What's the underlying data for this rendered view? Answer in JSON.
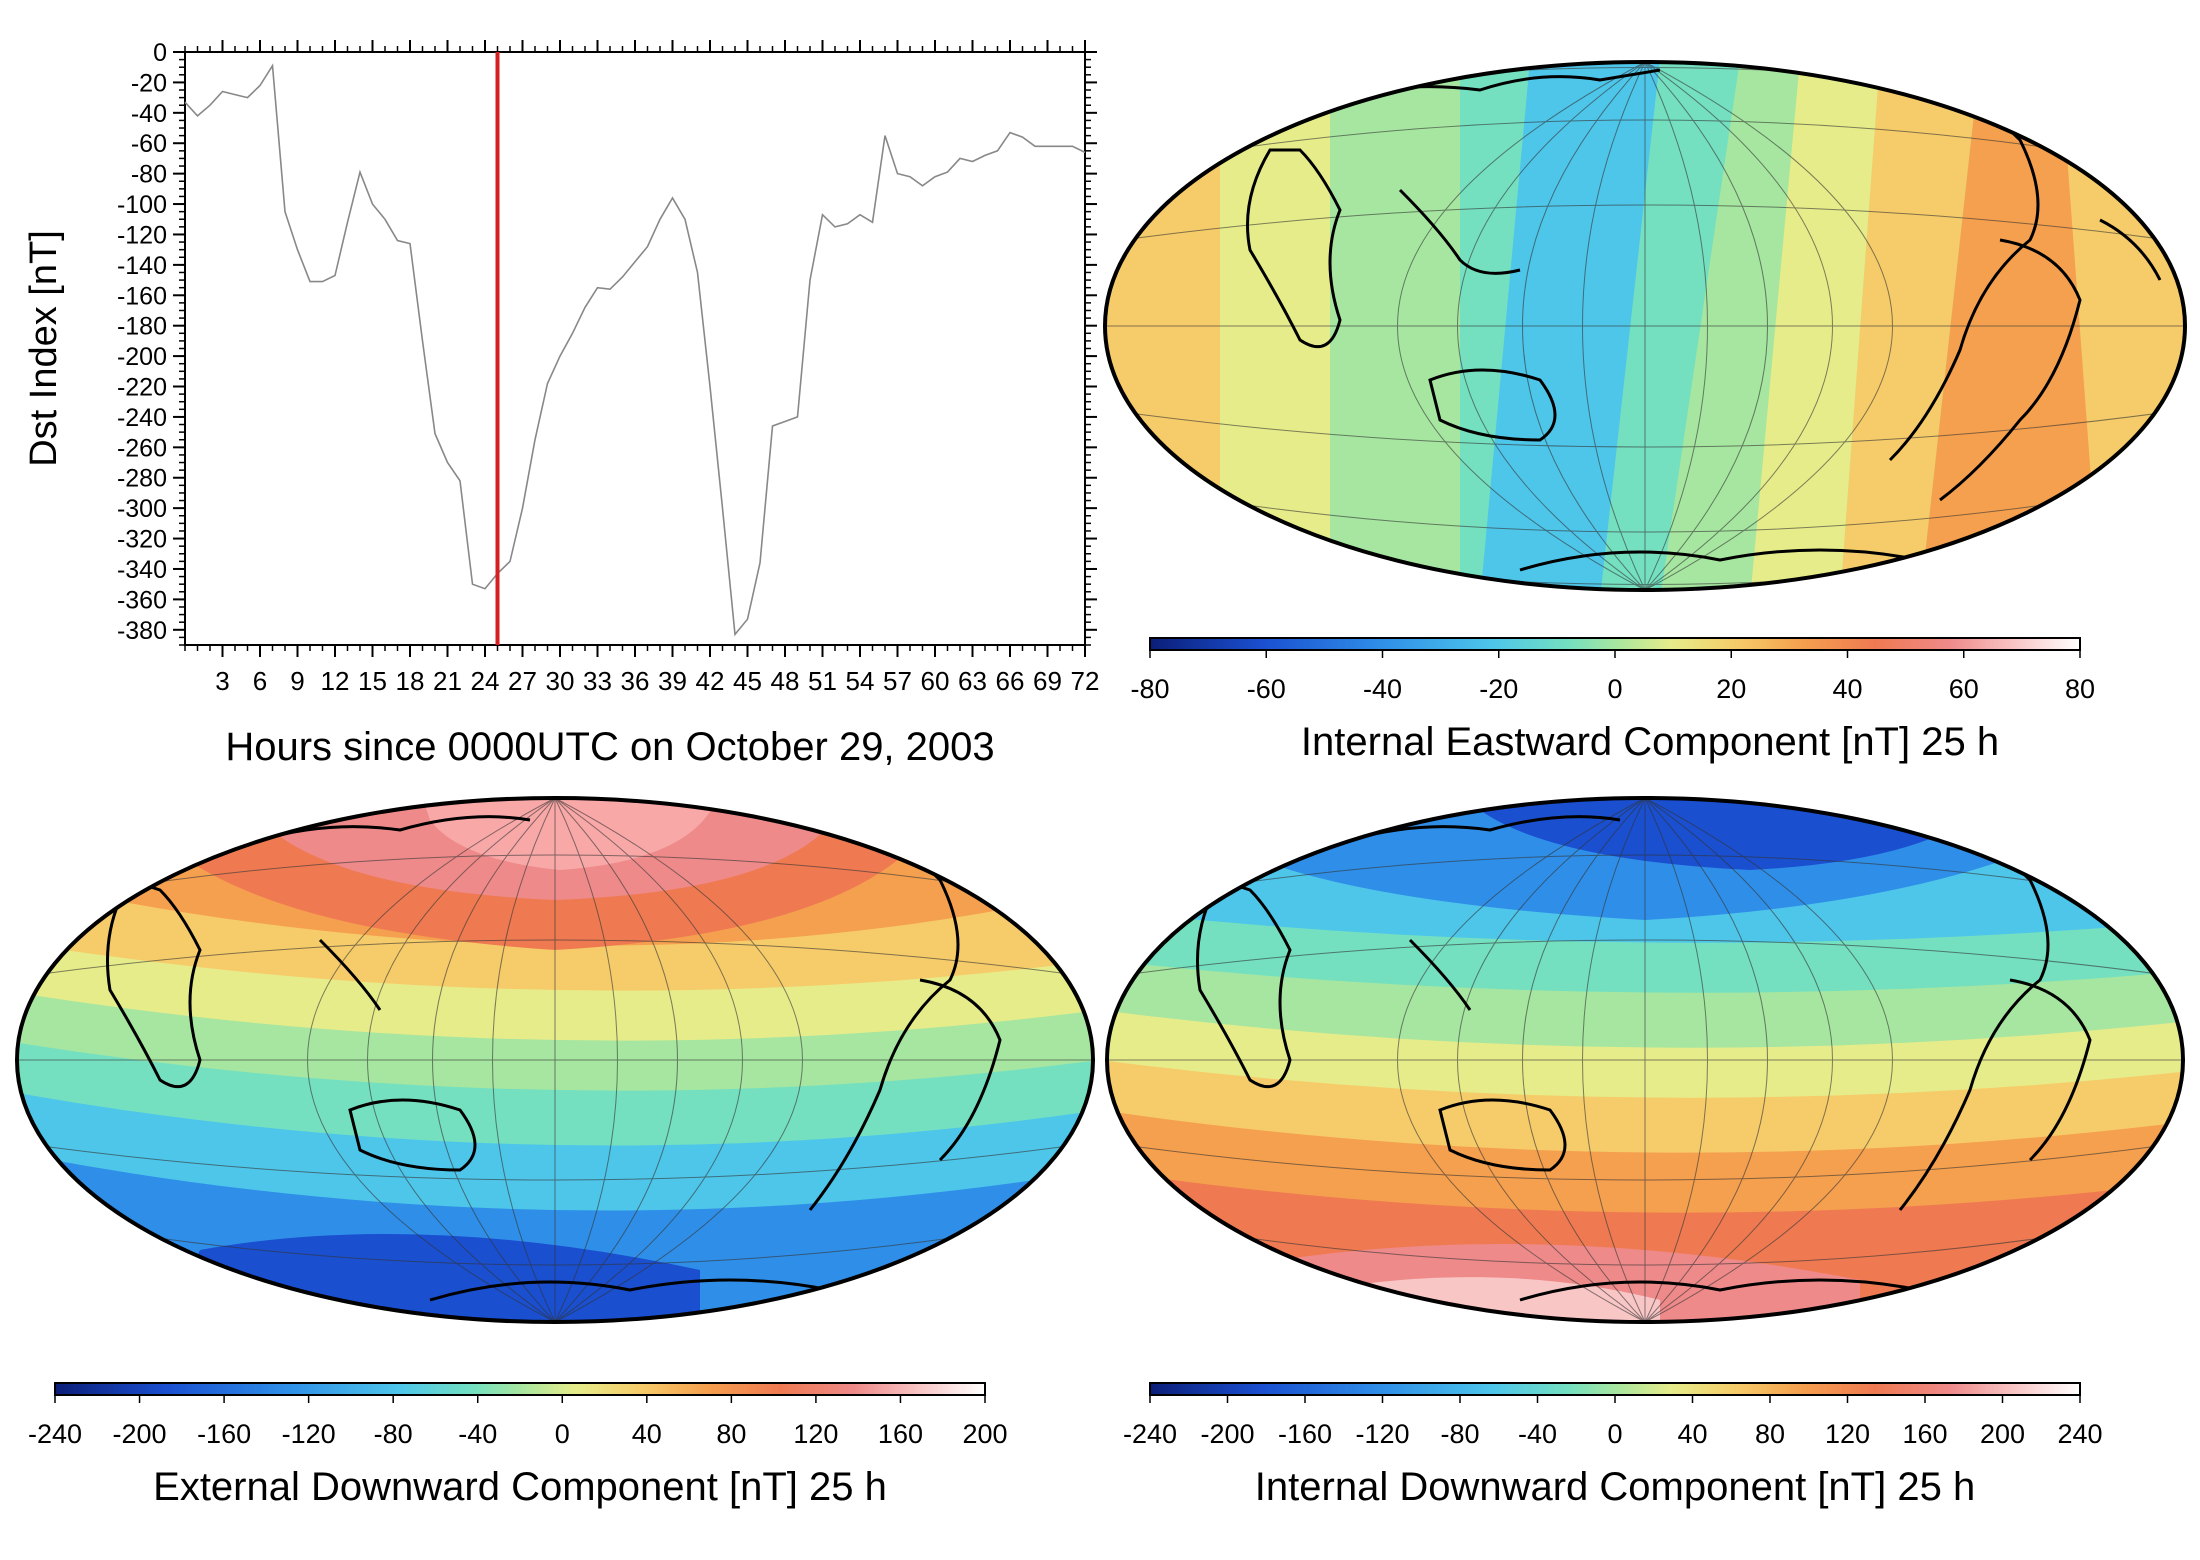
{
  "chart_data": [
    {
      "type": "line",
      "xlabel": "Hours since 0000UTC on October 29, 2003",
      "ylabel": "Dst Index [nT]",
      "ylim": [
        -390,
        0
      ],
      "xlim": [
        0,
        72
      ],
      "yticks": [
        0,
        -20,
        -40,
        -60,
        -80,
        -100,
        -120,
        -140,
        -160,
        -180,
        -200,
        -220,
        -240,
        -260,
        -280,
        -300,
        -320,
        -340,
        -360,
        -380
      ],
      "xticks": [
        3,
        6,
        9,
        12,
        15,
        18,
        21,
        24,
        27,
        30,
        33,
        36,
        39,
        42,
        45,
        48,
        51,
        54,
        57,
        60,
        63,
        66,
        69,
        72
      ],
      "x": [
        0,
        1,
        2,
        3,
        4,
        5,
        6,
        7,
        8,
        9,
        10,
        11,
        12,
        13,
        14,
        15,
        16,
        17,
        18,
        19,
        20,
        21,
        22,
        23,
        24,
        25,
        26,
        27,
        28,
        29,
        30,
        31,
        32,
        33,
        34,
        35,
        36,
        37,
        38,
        39,
        40,
        41,
        42,
        43,
        44,
        45,
        46,
        47,
        48,
        49,
        50,
        51,
        52,
        53,
        54,
        55,
        56,
        57,
        58,
        59,
        60,
        61,
        62,
        63,
        64,
        65,
        66,
        67,
        68,
        69,
        70,
        71,
        72
      ],
      "y": [
        -33,
        -42,
        -35,
        -26,
        -28,
        -30,
        -22,
        -9,
        -105,
        -130,
        -151,
        -151,
        -147,
        -112,
        -79,
        -100,
        -110,
        -124,
        -126,
        -190,
        -251,
        -270,
        -282,
        -350,
        -353,
        -343,
        -335,
        -300,
        -255,
        -218,
        -200,
        -185,
        -168,
        -155,
        -156,
        -148,
        -138,
        -128,
        -110,
        -96,
        -110,
        -145,
        -220,
        -300,
        -383,
        -373,
        -336,
        -246,
        -243,
        -240,
        -150,
        -107,
        -115,
        -113,
        -107,
        -112,
        -55,
        -80,
        -82,
        -88,
        -82,
        -79,
        -70,
        -72,
        -68,
        -65,
        -53,
        -56,
        -62,
        -62,
        -62,
        -62,
        -66
      ],
      "marker_x": 25,
      "marker_color": "#d42020",
      "line_color": "#888888",
      "grid": false
    },
    {
      "type": "heatmap",
      "projection": "Hammer-Aitoff",
      "title": "Internal Eastward Component [nT] 25 h",
      "colorbar_ticks": [
        "-80",
        "-60",
        "-40",
        "-20",
        "0",
        "20",
        "40",
        "60",
        "80"
      ],
      "range": [
        -80,
        80
      ]
    },
    {
      "type": "heatmap",
      "projection": "Hammer-Aitoff",
      "title": "External Downward Component [nT] 25 h",
      "colorbar_ticks": [
        "-240",
        "-200",
        "-160",
        "-120",
        "-80",
        "-40",
        "0",
        "40",
        "80",
        "120",
        "160",
        "200"
      ],
      "range": [
        -240,
        200
      ]
    },
    {
      "type": "heatmap",
      "projection": "Hammer-Aitoff",
      "title": "Internal Downward Component [nT] 25 h",
      "colorbar_ticks": [
        "-240",
        "-200",
        "-160",
        "-120",
        "-80",
        "-40",
        "0",
        "40",
        "80",
        "120",
        "160",
        "200",
        "240"
      ],
      "range": [
        -240,
        240
      ]
    }
  ],
  "colors": {
    "colorbar": [
      "#0b1e78",
      "#1a4fd0",
      "#2f8fe8",
      "#4ec6ea",
      "#74e0c0",
      "#a6e6a0",
      "#e6ec8a",
      "#f6cc6a",
      "#f5a04e",
      "#ef7a52",
      "#ef8a8a",
      "#f9c6c6",
      "#ffffff"
    ],
    "coast": "#000000",
    "station": "#ffffff"
  }
}
